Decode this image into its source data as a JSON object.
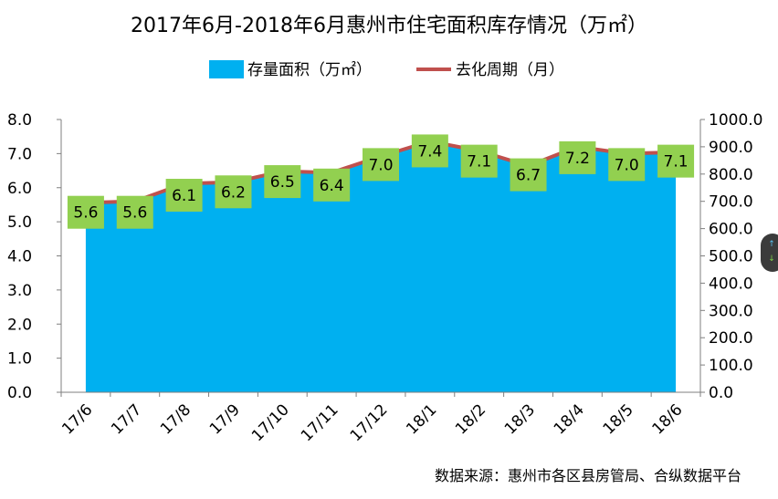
{
  "chart_data": {
    "type": "area",
    "title": "2017年6月-2018年6月惠州市住宅面积库存情况（万㎡）",
    "categories": [
      "17/6",
      "17/7",
      "17/8",
      "17/9",
      "17/10",
      "17/11",
      "17/12",
      "18/1",
      "18/2",
      "18/3",
      "18/4",
      "18/5",
      "18/6"
    ],
    "series": [
      {
        "name": "存量面积（万㎡）",
        "type": "area",
        "axis": "right",
        "color": "#00b0f0",
        "values": [
          695,
          700,
          765,
          770,
          810,
          805,
          865,
          920,
          885,
          830,
          900,
          875,
          880
        ]
      },
      {
        "name": "去化周期（月）",
        "type": "line",
        "axis": "left",
        "color": "#c0504d",
        "values": [
          5.6,
          5.6,
          6.1,
          6.2,
          6.5,
          6.4,
          7.0,
          7.4,
          7.1,
          6.7,
          7.2,
          7.0,
          7.1
        ],
        "labels": [
          "5.6",
          "5.6",
          "6.1",
          "6.2",
          "6.5",
          "6.4",
          "7.0",
          "7.4",
          "7.1",
          "6.7",
          "7.2",
          "7.0",
          "7.1"
        ]
      }
    ],
    "y_left": {
      "ticks": [
        "8.0",
        "7.0",
        "6.0",
        "5.0",
        "4.0",
        "3.0",
        "2.0",
        "1.0",
        "0.0"
      ],
      "ylim": [
        0,
        8
      ]
    },
    "y_right": {
      "ticks": [
        "1000.0",
        "900.0",
        "800.0",
        "700.0",
        "600.0",
        "500.0",
        "400.0",
        "300.0",
        "200.0",
        "100.0",
        "0.0"
      ],
      "ylim": [
        0,
        1000
      ]
    },
    "legend_position": "top-center",
    "grid": false,
    "label_box_color": "#92d050",
    "source": "数据来源：惠州市各区县房管局、合纵数据平台"
  },
  "widget": {
    "up_icon": "↑",
    "down_icon": "↓"
  }
}
